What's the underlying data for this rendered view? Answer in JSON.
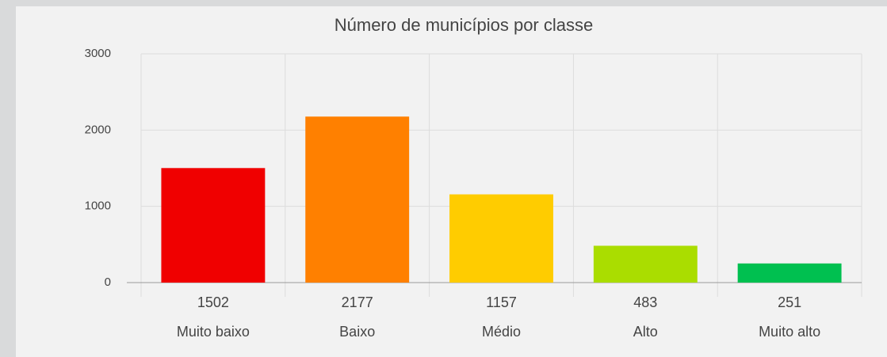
{
  "chart_data": {
    "type": "bar",
    "title": "Número de municípios por classe",
    "categories": [
      "Muito baixo",
      "Baixo",
      "Médio",
      "Alto",
      "Muito alto"
    ],
    "values": [
      1502,
      2177,
      1157,
      483,
      251
    ],
    "colors": [
      "#f00000",
      "#ff8000",
      "#ffcc00",
      "#aadd00",
      "#00c050"
    ],
    "ylim": [
      0,
      3000
    ],
    "yticks": [
      0,
      1000,
      2000,
      3000
    ],
    "grid": true
  }
}
